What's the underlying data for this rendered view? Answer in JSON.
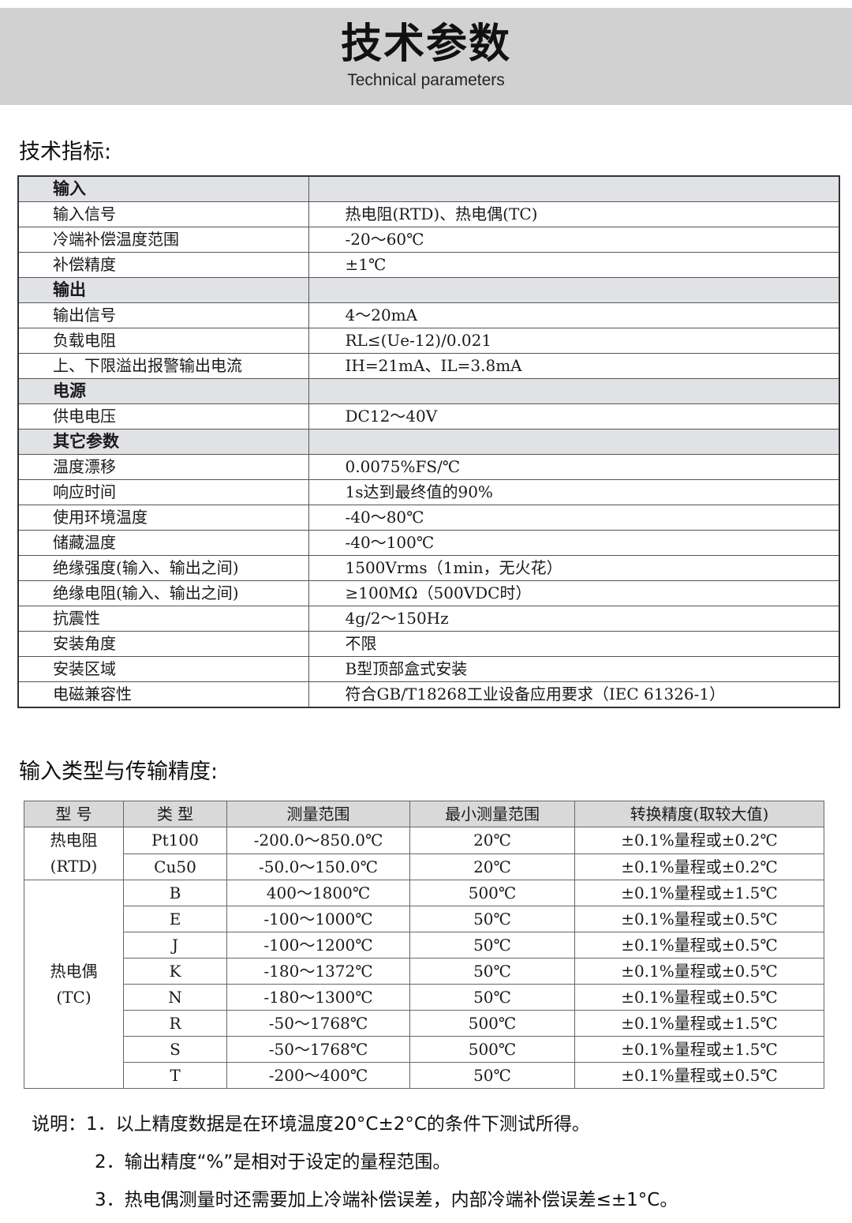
{
  "banner": {
    "title": "技术参数",
    "subtitle": "Technical parameters"
  },
  "spec": {
    "heading": "技术指标:",
    "rows": [
      {
        "section": true,
        "label": "输入",
        "value": ""
      },
      {
        "label": "输入信号",
        "value": "热电阻(RTD)、热电偶(TC)"
      },
      {
        "label": "冷端补偿温度范围",
        "value": "-20～60℃"
      },
      {
        "label": "补偿精度",
        "value": "±1℃"
      },
      {
        "section": true,
        "label": "输出",
        "value": ""
      },
      {
        "label": "输出信号",
        "value": "4～20mA"
      },
      {
        "label": "负载电阻",
        "value": "RL≤(Ue-12)/0.021"
      },
      {
        "label": "上、下限溢出报警输出电流",
        "value": "IH=21mA、IL=3.8mA"
      },
      {
        "section": true,
        "label": "电源",
        "value": ""
      },
      {
        "label": "供电电压",
        "value": "DC12～40V"
      },
      {
        "section": true,
        "label": "其它参数",
        "value": ""
      },
      {
        "label": "温度漂移",
        "value": "0.0075%FS/℃"
      },
      {
        "label": "响应时间",
        "value": "1s达到最终值的90%"
      },
      {
        "label": "使用环境温度",
        "value": "-40～80℃"
      },
      {
        "label": "储藏温度",
        "value": "-40～100℃"
      },
      {
        "label": "绝缘强度(输入、输出之间)",
        "value": "1500Vrms（1min，无火花）"
      },
      {
        "label": "绝缘电阻(输入、输出之间)",
        "value": "≥100MΩ（500VDC时）"
      },
      {
        "label": "抗震性",
        "value": "4g/2～150Hz"
      },
      {
        "label": "安装角度",
        "value": "不限"
      },
      {
        "label": "安装区域",
        "value": "B型顶部盒式安装"
      },
      {
        "label": "电磁兼容性",
        "value": "符合GB/T18268工业设备应用要求（IEC 61326-1）"
      }
    ]
  },
  "accuracy": {
    "heading": "输入类型与传输精度:",
    "headers": [
      "型 号",
      "类 型",
      "测量范围",
      "最小测量范围",
      "转换精度(取较大值)"
    ],
    "groups": [
      {
        "name": "热电阻",
        "sub": "(RTD)",
        "rows": [
          [
            "Pt100",
            "-200.0～850.0℃",
            "20℃",
            "±0.1%量程或±0.2℃"
          ],
          [
            "Cu50",
            "-50.0～150.0℃",
            "20℃",
            "±0.1%量程或±0.2℃"
          ]
        ]
      },
      {
        "name": "热电偶",
        "sub": "(TC)",
        "rows": [
          [
            "B",
            "400～1800℃",
            "500℃",
            "±0.1%量程或±1.5℃"
          ],
          [
            "E",
            "-100～1000℃",
            "50℃",
            "±0.1%量程或±0.5℃"
          ],
          [
            "J",
            "-100～1200℃",
            "50℃",
            "±0.1%量程或±0.5℃"
          ],
          [
            "K",
            "-180～1372℃",
            "50℃",
            "±0.1%量程或±0.5℃"
          ],
          [
            "N",
            "-180～1300℃",
            "50℃",
            "±0.1%量程或±0.5℃"
          ],
          [
            "R",
            "-50～1768℃",
            "500℃",
            "±0.1%量程或±1.5℃"
          ],
          [
            "S",
            "-50～1768℃",
            "500℃",
            "±0.1%量程或±1.5℃"
          ],
          [
            "T",
            "-200～400℃",
            "50℃",
            "±0.1%量程或±0.5℃"
          ]
        ]
      }
    ]
  },
  "notes": {
    "prefix": "说明：",
    "items": [
      "1．以上精度数据是在环境温度20°C±2°C的条件下测试所得。",
      "2．输出精度“%”是相对于设定的量程范围。",
      "3．热电偶测量时还需要加上冷端补偿误差，内部冷端补偿误差≤±1°C。"
    ]
  }
}
